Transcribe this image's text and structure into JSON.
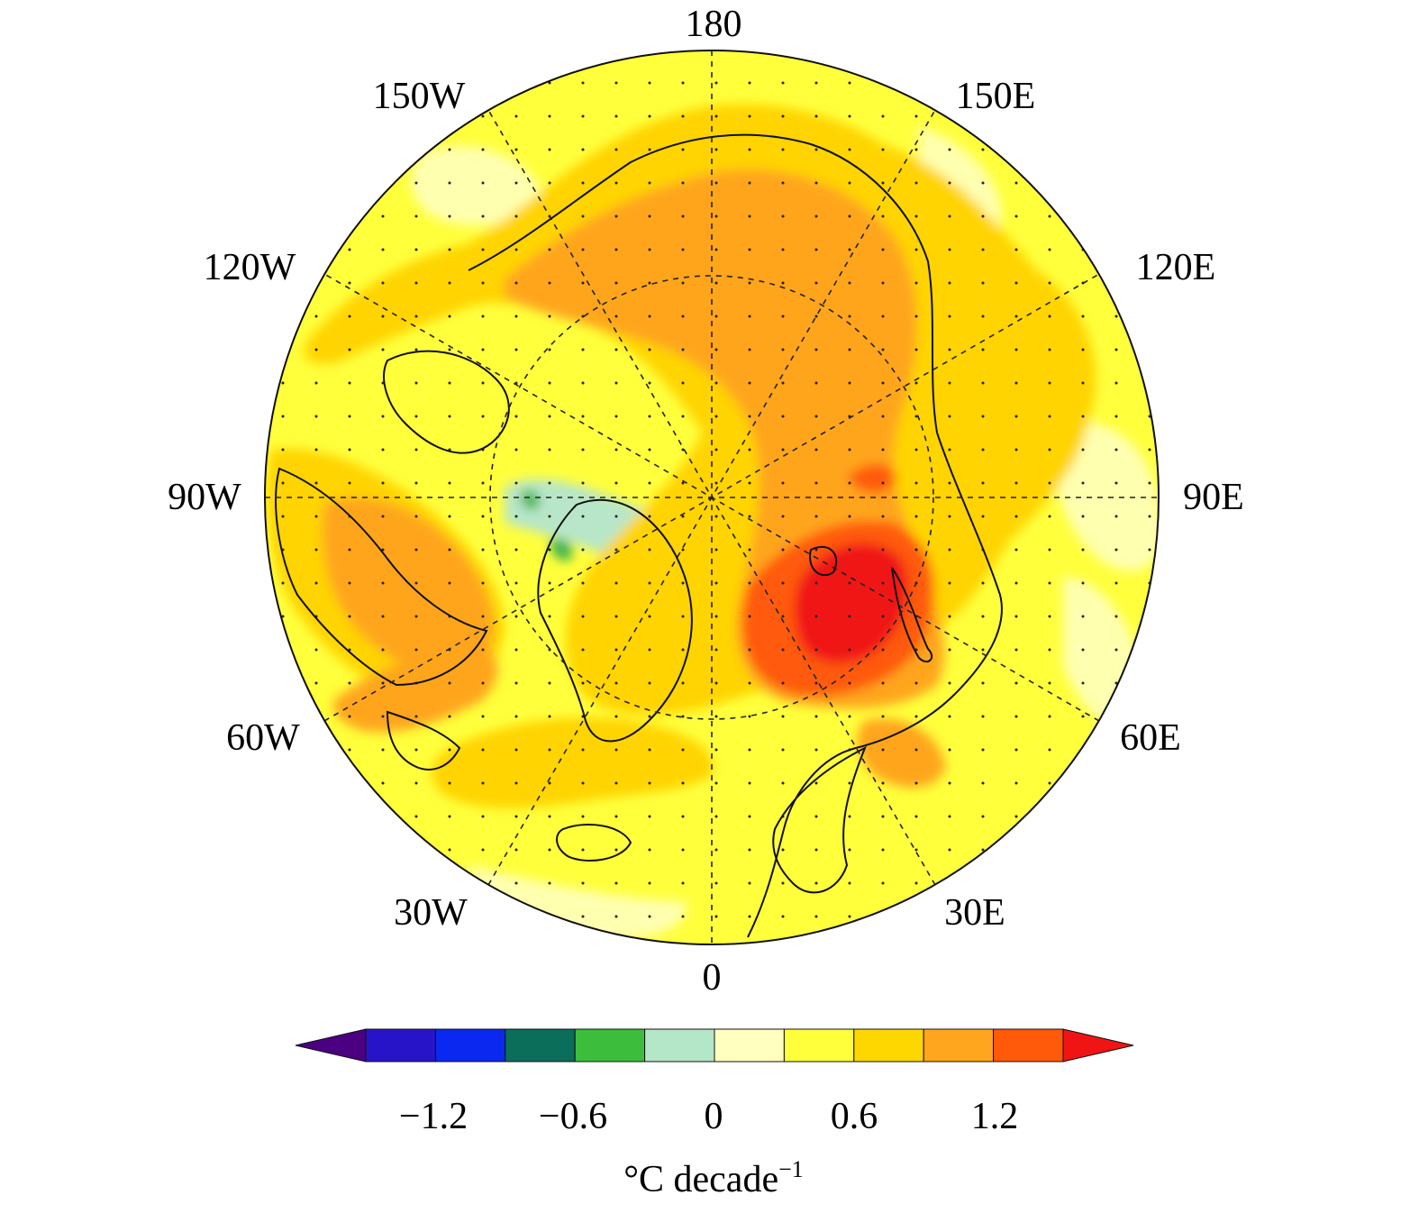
{
  "map": {
    "projection": "north polar stereographic",
    "longitude_labels": {
      "lon_180": "180",
      "lon_150e": "150E",
      "lon_120e": "120E",
      "lon_90e": "90E",
      "lon_60e": "60E",
      "lon_30e": "30E",
      "lon_0": "0",
      "lon_30w": "30W",
      "lon_60w": "60W",
      "lon_90w": "90W",
      "lon_120w": "120W",
      "lon_150w": "150W"
    },
    "stippling": true,
    "field_colors": {
      "background_warm": "#ffff3c",
      "moderate_warm": "#ffd400",
      "strong_warm": "#ffa51e",
      "very_strong_warm": "#ff5a0a",
      "extreme_warm": "#f01414",
      "weak_warm": "#ffffb0",
      "weak_cool": "#b8e6c8",
      "cool": "#3cb44b"
    }
  },
  "colorbar": {
    "colors": [
      "#4b0082",
      "#2814c8",
      "#0a28f0",
      "#0a6e5a",
      "#3cbe3c",
      "#b4e6c8",
      "#ffffc0",
      "#ffff3c",
      "#ffd700",
      "#ffa51e",
      "#ff5a0a",
      "#f01414"
    ],
    "tick_labels": [
      "−1.2",
      "−0.6",
      "0",
      "0.6",
      "1.2"
    ],
    "unit_main": "°C decade",
    "unit_sup": "−1"
  }
}
